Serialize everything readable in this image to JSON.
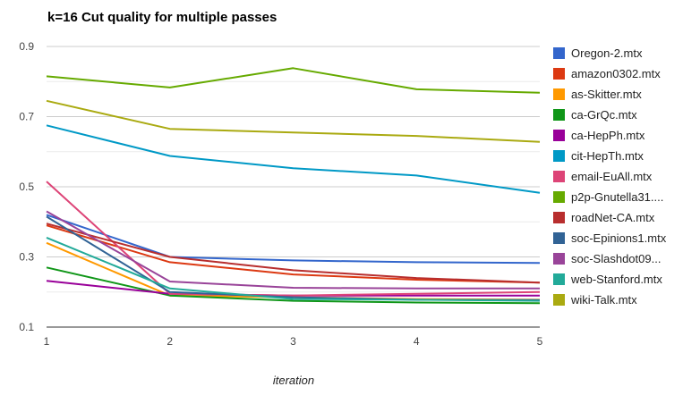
{
  "chart_data": {
    "type": "line",
    "title": "k=16 Cut quality for multiple passes",
    "xlabel": "iteration",
    "ylabel": "",
    "x": [
      1,
      2,
      3,
      4,
      5
    ],
    "x_ticks": [
      "1",
      "2",
      "3",
      "4",
      "5"
    ],
    "y_ticks": [
      "0.1",
      "0.3",
      "0.5",
      "0.7",
      "0.9"
    ],
    "ylim": [
      0.1,
      0.9
    ],
    "grid": "horizontal",
    "legend_position": "right",
    "series": [
      {
        "name": "Oregon-2.mtx",
        "color": "#3366cc",
        "values": [
          0.42,
          0.3,
          0.29,
          0.285,
          0.283
        ]
      },
      {
        "name": "amazon0302.mtx",
        "color": "#dc3912",
        "values": [
          0.39,
          0.285,
          0.25,
          0.235,
          0.227
        ]
      },
      {
        "name": "as-Skitter.mtx",
        "color": "#ff9900",
        "values": [
          0.34,
          0.19,
          0.185,
          0.18,
          0.178
        ]
      },
      {
        "name": "ca-GrQc.mtx",
        "color": "#109618",
        "values": [
          0.27,
          0.19,
          0.175,
          0.17,
          0.168
        ]
      },
      {
        "name": "ca-HepPh.mtx",
        "color": "#990099",
        "values": [
          0.232,
          0.195,
          0.19,
          0.19,
          0.19
        ]
      },
      {
        "name": "cit-HepTh.mtx",
        "color": "#0099c6",
        "values": [
          0.675,
          0.588,
          0.553,
          0.532,
          0.483
        ]
      },
      {
        "name": "email-EuAll.mtx",
        "color": "#dd4477",
        "values": [
          0.515,
          0.195,
          0.19,
          0.195,
          0.2
        ]
      },
      {
        "name": "p2p-Gnutella31....",
        "color": "#66aa00",
        "values": [
          0.815,
          0.783,
          0.838,
          0.778,
          0.768
        ]
      },
      {
        "name": "roadNet-CA.mtx",
        "color": "#b82e2e",
        "values": [
          0.395,
          0.3,
          0.262,
          0.24,
          0.227
        ]
      },
      {
        "name": "soc-Epinions1.mtx",
        "color": "#316395",
        "values": [
          0.415,
          0.2,
          0.185,
          0.178,
          0.177
        ]
      },
      {
        "name": "soc-Slashdot09...",
        "color": "#994499",
        "values": [
          0.43,
          0.23,
          0.212,
          0.21,
          0.21
        ]
      },
      {
        "name": "web-Stanford.mtx",
        "color": "#22aa99",
        "values": [
          0.355,
          0.21,
          0.18,
          0.178,
          0.175
        ]
      },
      {
        "name": "wiki-Talk.mtx",
        "color": "#aaaa11",
        "values": [
          0.745,
          0.665,
          0.655,
          0.645,
          0.628
        ]
      }
    ]
  }
}
